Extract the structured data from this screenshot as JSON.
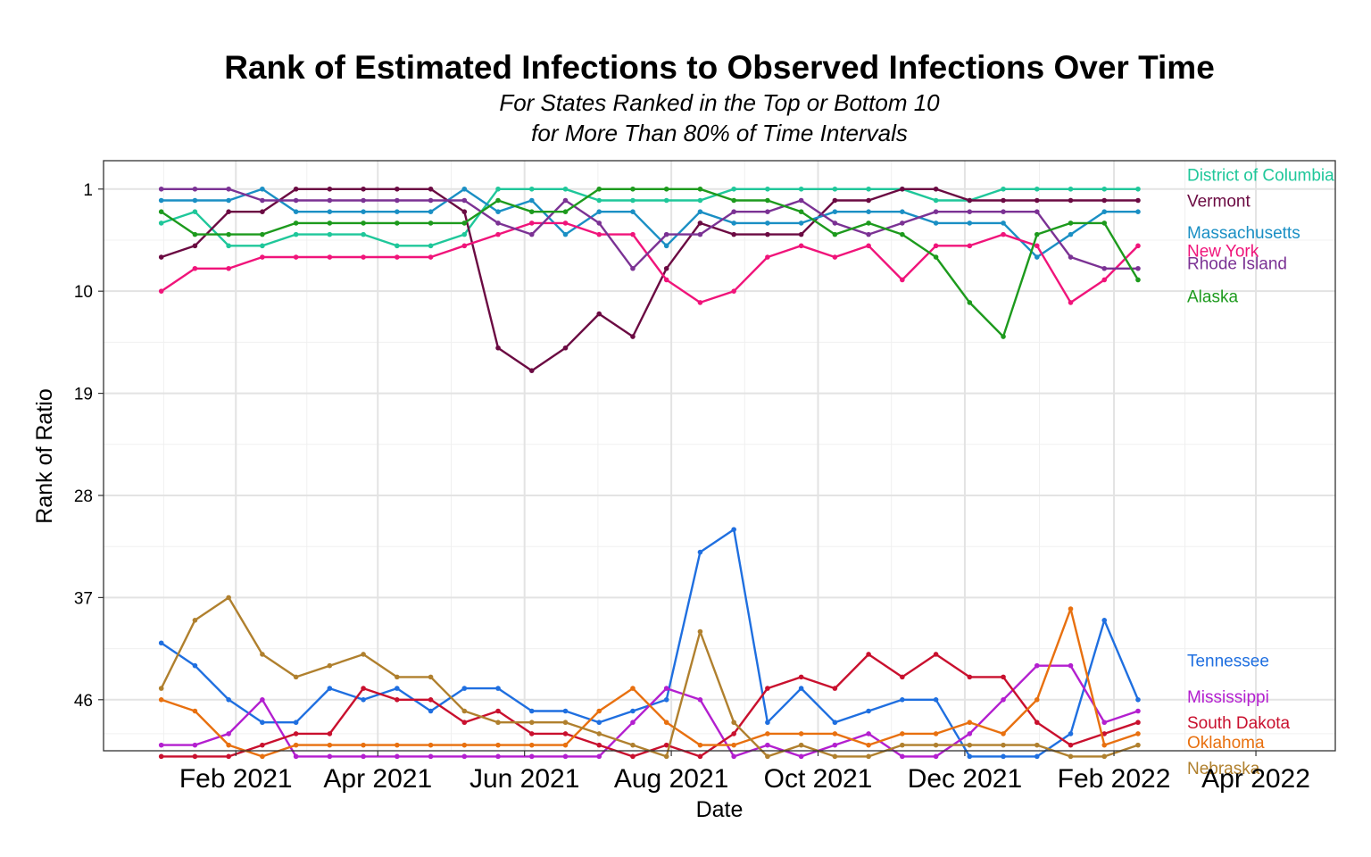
{
  "chart_data": {
    "type": "line",
    "title": "Rank of Estimated Infections to Observed Infections Over Time",
    "subtitle_lines": [
      "For States Ranked in the Top or Bottom 10",
      "for More Than 80% of Time Intervals"
    ],
    "xlabel": "Date",
    "ylabel": "Rank of Ratio",
    "y_reversed": true,
    "ylim": [
      -1.5,
      50.5
    ],
    "yticks": [
      1,
      10,
      19,
      28,
      37,
      46
    ],
    "xlim": [
      "2020-12-08",
      "2022-05-04"
    ],
    "xticks": [
      {
        "date": "2021-02-01",
        "label": "Feb 2021"
      },
      {
        "date": "2021-04-01",
        "label": "Apr 2021"
      },
      {
        "date": "2021-06-01",
        "label": "Jun 2021"
      },
      {
        "date": "2021-08-01",
        "label": "Aug 2021"
      },
      {
        "date": "2021-10-01",
        "label": "Oct 2021"
      },
      {
        "date": "2021-12-01",
        "label": "Dec 2021"
      },
      {
        "date": "2022-02-01",
        "label": "Feb 2022"
      },
      {
        "date": "2022-04-01",
        "label": "Apr 2022"
      }
    ],
    "grid": true,
    "legend": "direct labels at right end of lines",
    "x": [
      "2021-01-01",
      "2021-01-15",
      "2021-01-29",
      "2021-02-12",
      "2021-02-26",
      "2021-03-12",
      "2021-03-26",
      "2021-04-09",
      "2021-04-23",
      "2021-05-07",
      "2021-05-21",
      "2021-06-04",
      "2021-06-18",
      "2021-07-02",
      "2021-07-16",
      "2021-07-30",
      "2021-08-13",
      "2021-08-27",
      "2021-09-10",
      "2021-09-24",
      "2021-10-08",
      "2021-10-22",
      "2021-11-05",
      "2021-11-19",
      "2021-12-03",
      "2021-12-17",
      "2021-12-31",
      "2022-01-14",
      "2022-01-28",
      "2022-02-11"
    ],
    "series": [
      {
        "name": "District of Columbia",
        "color": "#1fc79a",
        "label_offset": -1.3,
        "values": [
          4,
          3,
          6,
          6,
          5,
          5,
          5,
          6,
          6,
          5,
          1,
          1,
          1,
          2,
          2,
          2,
          2,
          1,
          1,
          1,
          1,
          1,
          1,
          2,
          2,
          1,
          1,
          1,
          1,
          1
        ]
      },
      {
        "name": "Vermont",
        "color": "#6b0a42",
        "label_offset": 0,
        "values": [
          7,
          6,
          3,
          3,
          1,
          1,
          1,
          1,
          1,
          3,
          15,
          17,
          15,
          12,
          14,
          8,
          4,
          5,
          5,
          5,
          2,
          2,
          1,
          1,
          2,
          2,
          2,
          2,
          2,
          2
        ]
      },
      {
        "name": "Massachusetts",
        "color": "#1a8fc4",
        "label_offset": 1.8,
        "values": [
          2,
          2,
          2,
          1,
          3,
          3,
          3,
          3,
          3,
          1,
          3,
          2,
          5,
          3,
          3,
          6,
          3,
          4,
          4,
          4,
          3,
          3,
          3,
          4,
          4,
          4,
          7,
          5,
          3,
          3
        ]
      },
      {
        "name": "New York",
        "color": "#f0147a",
        "label_offset": 0.4,
        "values": [
          10,
          8,
          8,
          7,
          7,
          7,
          7,
          7,
          7,
          6,
          5,
          4,
          4,
          5,
          5,
          9,
          11,
          10,
          7,
          6,
          7,
          6,
          9,
          6,
          6,
          5,
          6,
          11,
          9,
          6
        ]
      },
      {
        "name": "Rhode Island",
        "color": "#7b3294",
        "label_offset": -0.5,
        "values": [
          1,
          1,
          1,
          2,
          2,
          2,
          2,
          2,
          2,
          2,
          4,
          5,
          2,
          4,
          8,
          5,
          5,
          3,
          3,
          2,
          4,
          5,
          4,
          3,
          3,
          3,
          3,
          7,
          8,
          8
        ]
      },
      {
        "name": "Alaska",
        "color": "#1d9a1d",
        "label_offset": 1.4,
        "values": [
          3,
          5,
          5,
          5,
          4,
          4,
          4,
          4,
          4,
          4,
          2,
          3,
          3,
          1,
          1,
          1,
          1,
          2,
          2,
          3,
          5,
          4,
          5,
          7,
          11,
          14,
          5,
          4,
          4,
          9
        ]
      },
      {
        "name": "Tennessee",
        "color": "#1f6fe0",
        "label_offset": -3.5,
        "values": [
          41,
          43,
          46,
          48,
          48,
          45,
          46,
          45,
          47,
          45,
          45,
          47,
          47,
          48,
          47,
          46,
          33,
          31,
          48,
          45,
          48,
          47,
          46,
          46,
          51,
          51,
          51,
          49,
          39,
          46
        ]
      },
      {
        "name": "Mississippi",
        "color": "#b31fcf",
        "label_offset": -1.3,
        "values": [
          50,
          50,
          49,
          46,
          51,
          51,
          51,
          51,
          51,
          51,
          51,
          51,
          51,
          51,
          48,
          45,
          46,
          51,
          50,
          51,
          50,
          49,
          51,
          51,
          49,
          46,
          43,
          43,
          48,
          47
        ]
      },
      {
        "name": "South Dakota",
        "color": "#c9102e",
        "label_offset": 0,
        "values": [
          51,
          51,
          51,
          50,
          49,
          49,
          45,
          46,
          46,
          48,
          47,
          49,
          49,
          50,
          51,
          50,
          51,
          49,
          45,
          44,
          45,
          42,
          44,
          42,
          44,
          44,
          48,
          50,
          49,
          48
        ]
      },
      {
        "name": "Oklahoma",
        "color": "#e8700f",
        "label_offset": 0.7,
        "values": [
          46,
          47,
          50,
          51,
          50,
          50,
          50,
          50,
          50,
          50,
          50,
          50,
          50,
          47,
          45,
          48,
          50,
          50,
          49,
          49,
          49,
          50,
          49,
          49,
          48,
          49,
          46,
          38,
          50,
          49
        ]
      },
      {
        "name": "Nebraska",
        "color": "#b0802e",
        "label_offset": 2.0,
        "values": [
          45,
          39,
          37,
          42,
          44,
          43,
          42,
          44,
          44,
          47,
          48,
          48,
          48,
          49,
          50,
          51,
          40,
          48,
          51,
          50,
          51,
          51,
          50,
          50,
          50,
          50,
          50,
          51,
          51,
          50
        ]
      }
    ]
  }
}
